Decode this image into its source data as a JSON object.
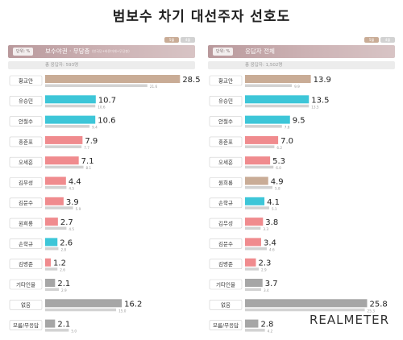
{
  "title": "범보수 차기 대선주자 선호도",
  "brand": "REALMETER",
  "legend": {
    "current_label": "5월",
    "previous_label": "4월"
  },
  "colors": {
    "current_default": "#c9ac96",
    "highlight_blue": "#3dc6d8",
    "highlight_pink": "#f08b8e",
    "other_gray": "#a6a6a6",
    "previous": "#d2d2d2",
    "header_label_bg": "#ffffff"
  },
  "chart_data": [
    {
      "type": "bar",
      "unit_label": "단위: %",
      "header_title": "보수야권 · 무당층",
      "header_note": "(한국당+바른미래+무당층)",
      "respondents": "총 응답자: 593명",
      "categories": [
        "황교안",
        "유승민",
        "안철수",
        "홍준표",
        "오세훈",
        "김무성",
        "김문수",
        "원희룡",
        "손학규",
        "김병준",
        "기타인물",
        "없음",
        "모름/무응답"
      ],
      "series": [
        {
          "values": [
            28.5,
            10.7,
            10.6,
            7.9,
            7.1,
            4.4,
            3.9,
            2.7,
            2.6,
            1.2,
            2.1,
            16.2,
            2.1
          ],
          "labels": [
            "28.5",
            "10.7",
            "10.6",
            "7.9",
            "7.1",
            "4.4",
            "3.9",
            "2.7",
            "2.6",
            "1.2",
            "2.1",
            "16.2",
            "2.1"
          ],
          "colors": [
            "#c9ac96",
            "#3dc6d8",
            "#3dc6d8",
            "#f08b8e",
            "#f08b8e",
            "#f08b8e",
            "#f08b8e",
            "#f08b8e",
            "#3dc6d8",
            "#f08b8e",
            "#a6a6a6",
            "#a6a6a6",
            "#a6a6a6"
          ]
        },
        {
          "values": [
            21.6,
            10.6,
            9.4,
            7.7,
            8.1,
            4.5,
            5.9,
            4.5,
            2.8,
            2.6,
            2.9,
            15.0,
            5.0
          ],
          "labels": [
            "21.6",
            "10.6",
            "9.4",
            "7.7",
            "8.1",
            "4.5",
            "5.9",
            "4.5",
            "2.8",
            "2.6",
            "2.9",
            "15.0",
            "5.0"
          ]
        }
      ],
      "xlim": [
        0,
        31
      ]
    },
    {
      "type": "bar",
      "unit_label": "단위: %",
      "header_title": "응답자 전체",
      "header_note": "",
      "respondents": "총 응답자: 1,502명",
      "categories": [
        "황교안",
        "유승민",
        "안철수",
        "홍준표",
        "오세훈",
        "원희룡",
        "손학규",
        "김무성",
        "김문수",
        "김병준",
        "기타인물",
        "없음",
        "모름/무응답"
      ],
      "series": [
        {
          "values": [
            13.9,
            13.5,
            9.5,
            7.0,
            5.3,
            4.9,
            4.1,
            3.8,
            3.4,
            2.3,
            3.7,
            25.8,
            2.8
          ],
          "labels": [
            "13.9",
            "13.5",
            "9.5",
            "7.0",
            "5.3",
            "4.9",
            "4.1",
            "3.8",
            "3.4",
            "2.3",
            "3.7",
            "25.8",
            "2.8"
          ],
          "colors": [
            "#c9ac96",
            "#3dc6d8",
            "#3dc6d8",
            "#f08b8e",
            "#f08b8e",
            "#c9ac96",
            "#3dc6d8",
            "#f08b8e",
            "#f08b8e",
            "#f08b8e",
            "#a6a6a6",
            "#a6a6a6",
            "#a6a6a6"
          ]
        },
        {
          "values": [
            9.9,
            13.5,
            7.8,
            6.2,
            6.0,
            5.8,
            5.1,
            3.3,
            4.6,
            2.9,
            3.4,
            25.3,
            4.2
          ],
          "labels": [
            "9.9",
            "13.5",
            "7.8",
            "6.2",
            "6.0",
            "5.8",
            "5.1",
            "3.3",
            "4.6",
            "2.9",
            "3.4",
            "25.3",
            "4.2"
          ]
        }
      ],
      "xlim": [
        0,
        31
      ]
    }
  ]
}
